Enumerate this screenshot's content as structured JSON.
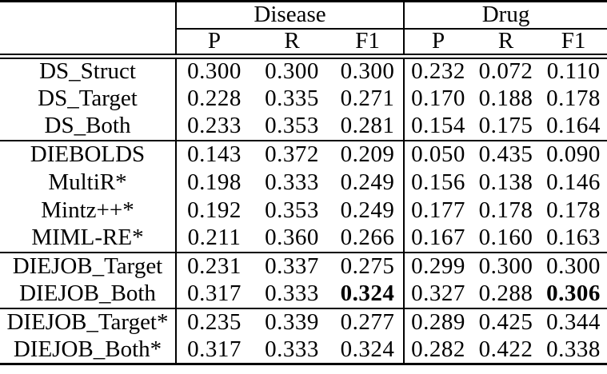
{
  "colors": {
    "text": "#000000",
    "background": "#ffffff",
    "rule": "#000000"
  },
  "table": {
    "group_headers": [
      "Disease",
      "Drug"
    ],
    "sub_headers": [
      "P",
      "R",
      "F1",
      "P",
      "R",
      "F1"
    ],
    "sections": [
      {
        "rows": [
          {
            "label": "DS_Struct",
            "values": [
              "0.300",
              "0.300",
              "0.300",
              "0.232",
              "0.072",
              "0.110"
            ],
            "bold": [
              false,
              false,
              false,
              false,
              false,
              false
            ]
          },
          {
            "label": "DS_Target",
            "values": [
              "0.228",
              "0.335",
              "0.271",
              "0.170",
              "0.188",
              "0.178"
            ],
            "bold": [
              false,
              false,
              false,
              false,
              false,
              false
            ]
          },
          {
            "label": "DS_Both",
            "values": [
              "0.233",
              "0.353",
              "0.281",
              "0.154",
              "0.175",
              "0.164"
            ],
            "bold": [
              false,
              false,
              false,
              false,
              false,
              false
            ]
          }
        ]
      },
      {
        "rows": [
          {
            "label": "DIEBOLDS",
            "values": [
              "0.143",
              "0.372",
              "0.209",
              "0.050",
              "0.435",
              "0.090"
            ],
            "bold": [
              false,
              false,
              false,
              false,
              false,
              false
            ]
          },
          {
            "label": "MultiR*",
            "values": [
              "0.198",
              "0.333",
              "0.249",
              "0.156",
              "0.138",
              "0.146"
            ],
            "bold": [
              false,
              false,
              false,
              false,
              false,
              false
            ]
          },
          {
            "label": "Mintz++*",
            "values": [
              "0.192",
              "0.353",
              "0.249",
              "0.177",
              "0.178",
              "0.178"
            ],
            "bold": [
              false,
              false,
              false,
              false,
              false,
              false
            ]
          },
          {
            "label": "MIML-RE*",
            "values": [
              "0.211",
              "0.360",
              "0.266",
              "0.167",
              "0.160",
              "0.163"
            ],
            "bold": [
              false,
              false,
              false,
              false,
              false,
              false
            ]
          }
        ]
      },
      {
        "rows": [
          {
            "label": "DIEJOB_Target",
            "values": [
              "0.231",
              "0.337",
              "0.275",
              "0.299",
              "0.300",
              "0.300"
            ],
            "bold": [
              false,
              false,
              false,
              false,
              false,
              false
            ]
          },
          {
            "label": "DIEJOB_Both",
            "values": [
              "0.317",
              "0.333",
              "0.324",
              "0.327",
              "0.288",
              "0.306"
            ],
            "bold": [
              false,
              false,
              true,
              false,
              false,
              true
            ]
          }
        ]
      },
      {
        "rows": [
          {
            "label": "DIEJOB_Target*",
            "values": [
              "0.235",
              "0.339",
              "0.277",
              "0.289",
              "0.425",
              "0.344"
            ],
            "bold": [
              false,
              false,
              false,
              false,
              false,
              false
            ]
          },
          {
            "label": "DIEJOB_Both*",
            "values": [
              "0.317",
              "0.333",
              "0.324",
              "0.282",
              "0.422",
              "0.338"
            ],
            "bold": [
              false,
              false,
              false,
              false,
              false,
              false
            ]
          }
        ]
      }
    ]
  }
}
